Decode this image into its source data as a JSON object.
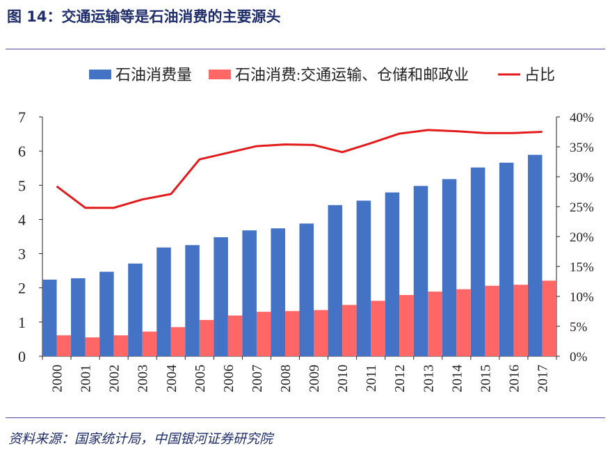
{
  "header": {
    "title": "图 14：交通运输等是石油消费的主要源头"
  },
  "footer": {
    "source": "资料来源：国家统计局，中国银河证券研究院"
  },
  "colors": {
    "bar1": "#4472c4",
    "bar2": "#ff6666",
    "line": "#e31a1c",
    "title": "#1f2d6b",
    "rule": "#4a4a9a"
  },
  "chart_data": {
    "type": "bar",
    "title": "",
    "categories": [
      "2000",
      "2001",
      "2002",
      "2003",
      "2004",
      "2005",
      "2006",
      "2007",
      "2008",
      "2009",
      "2010",
      "2011",
      "2012",
      "2013",
      "2014",
      "2015",
      "2016",
      "2017"
    ],
    "series": [
      {
        "name": "石油消费量",
        "kind": "bar",
        "axis": "left",
        "values": [
          2.24,
          2.28,
          2.47,
          2.71,
          3.18,
          3.25,
          3.48,
          3.68,
          3.74,
          3.88,
          4.42,
          4.55,
          4.79,
          4.98,
          5.18,
          5.52,
          5.66,
          5.89
        ]
      },
      {
        "name": "石油消费:交通运输、仓储和邮政业",
        "kind": "bar",
        "axis": "left",
        "values": [
          0.61,
          0.55,
          0.61,
          0.72,
          0.85,
          1.06,
          1.19,
          1.3,
          1.32,
          1.35,
          1.5,
          1.62,
          1.79,
          1.89,
          1.96,
          2.06,
          2.09,
          2.21
        ]
      },
      {
        "name": "占比",
        "kind": "line",
        "axis": "right",
        "values": [
          28.4,
          24.8,
          24.8,
          26.2,
          27.1,
          32.9,
          34.0,
          35.1,
          35.4,
          35.3,
          34.1,
          35.6,
          37.2,
          37.8,
          37.6,
          37.3,
          37.3,
          37.5
        ]
      }
    ],
    "y_left": {
      "min": 0,
      "max": 7,
      "ticks": [
        "0",
        "1",
        "2",
        "3",
        "4",
        "5",
        "6",
        "7"
      ]
    },
    "y_right": {
      "min": 0,
      "max": 40,
      "ticks": [
        "0%",
        "5%",
        "10%",
        "15%",
        "20%",
        "25%",
        "30%",
        "35%",
        "40%"
      ]
    },
    "legend_position": "top",
    "grid": false
  }
}
